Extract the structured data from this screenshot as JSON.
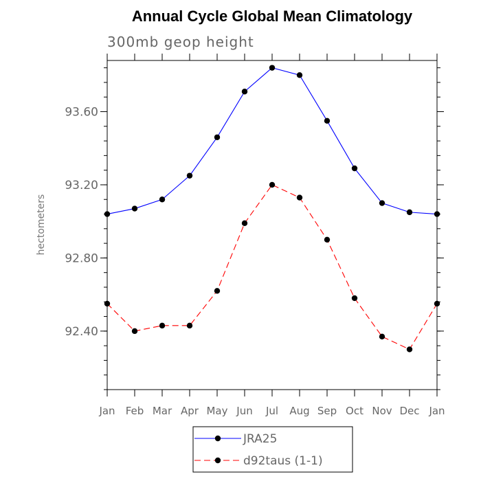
{
  "chart_data": {
    "type": "line",
    "title": "Annual Cycle Global Mean Climatology",
    "subtitle": "300mb geop height",
    "xlabel": "",
    "ylabel": "hectometers",
    "categories": [
      "Jan",
      "Feb",
      "Mar",
      "Apr",
      "May",
      "Jun",
      "Jul",
      "Aug",
      "Sep",
      "Oct",
      "Nov",
      "Dec",
      "Jan"
    ],
    "ylim": [
      92.08,
      93.88
    ],
    "yticks": [
      92.4,
      92.8,
      93.2,
      93.6
    ],
    "ytick_labels": [
      "92.40",
      "92.80",
      "93.20",
      "93.60"
    ],
    "series": [
      {
        "name": "JRA25",
        "color": "#0000ff",
        "style": "solid",
        "values": [
          93.04,
          93.07,
          93.12,
          93.25,
          93.46,
          93.71,
          93.84,
          93.8,
          93.55,
          93.29,
          93.1,
          93.05,
          93.04
        ]
      },
      {
        "name": "d92taus (1-1)",
        "color": "#ff0000",
        "style": "dashed",
        "values": [
          92.55,
          92.4,
          92.43,
          92.43,
          92.62,
          92.99,
          93.2,
          93.13,
          92.9,
          92.58,
          92.37,
          92.3,
          92.55
        ]
      }
    ]
  }
}
